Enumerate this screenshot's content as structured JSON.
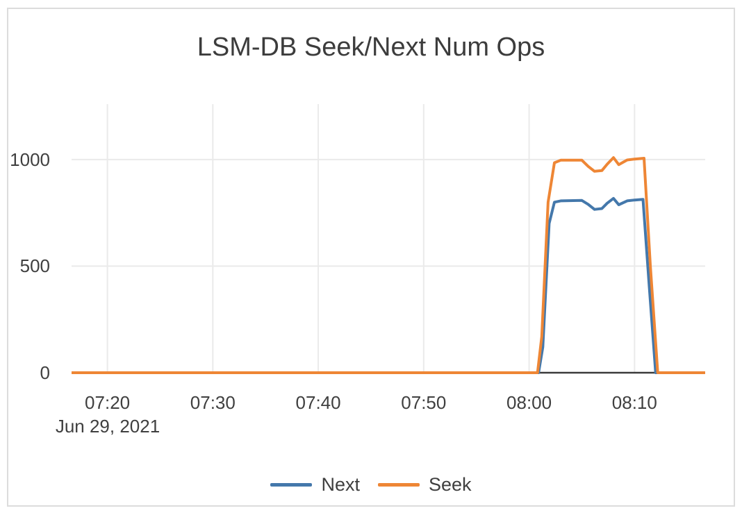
{
  "chart_data": {
    "type": "line",
    "title": "LSM-DB Seek/Next Num Ops",
    "x_axis": {
      "tick_labels": [
        "07:20",
        "07:30",
        "07:40",
        "07:50",
        "08:00",
        "08:10"
      ],
      "tick_minutes": [
        20,
        30,
        40,
        50,
        60,
        70
      ],
      "date_label": "Jun 29, 2021",
      "range_minutes": [
        16.6,
        76.7
      ]
    },
    "y_axis": {
      "tick_labels": [
        "0",
        "500",
        "1000"
      ],
      "tick_values": [
        0,
        500,
        1000
      ],
      "range": [
        0,
        1260
      ]
    },
    "grid": true,
    "gridline_color": "#eaeaea",
    "zero_line_color": "#3a3a3a",
    "text_color": "#3f3f3f",
    "legend": {
      "position": "bottom",
      "items": [
        {
          "label": "Next",
          "color": "#4478ab"
        },
        {
          "label": "Seek",
          "color": "#ee8635"
        }
      ]
    },
    "series": [
      {
        "name": "Next",
        "color": "#4478ab",
        "points_min_value": [
          [
            16.6,
            0
          ],
          [
            60.9,
            0
          ],
          [
            61.3,
            120
          ],
          [
            61.9,
            700
          ],
          [
            62.4,
            800
          ],
          [
            63.0,
            806
          ],
          [
            65.0,
            808
          ],
          [
            65.6,
            790
          ],
          [
            66.2,
            766
          ],
          [
            66.9,
            770
          ],
          [
            67.4,
            795
          ],
          [
            68.0,
            818
          ],
          [
            68.5,
            788
          ],
          [
            69.3,
            806
          ],
          [
            70.0,
            810
          ],
          [
            70.8,
            813
          ],
          [
            71.4,
            400
          ],
          [
            72.0,
            0
          ],
          [
            76.7,
            0
          ]
        ]
      },
      {
        "name": "Seek",
        "color": "#ee8635",
        "points_min_value": [
          [
            16.6,
            0
          ],
          [
            60.8,
            0
          ],
          [
            61.2,
            170
          ],
          [
            61.8,
            800
          ],
          [
            62.4,
            985
          ],
          [
            63.0,
            997
          ],
          [
            65.0,
            997
          ],
          [
            65.6,
            968
          ],
          [
            66.2,
            945
          ],
          [
            66.9,
            948
          ],
          [
            67.4,
            978
          ],
          [
            68.0,
            1009
          ],
          [
            68.5,
            976
          ],
          [
            69.3,
            998
          ],
          [
            70.0,
            1002
          ],
          [
            70.9,
            1006
          ],
          [
            71.5,
            500
          ],
          [
            72.2,
            0
          ],
          [
            76.7,
            0
          ]
        ]
      }
    ]
  }
}
